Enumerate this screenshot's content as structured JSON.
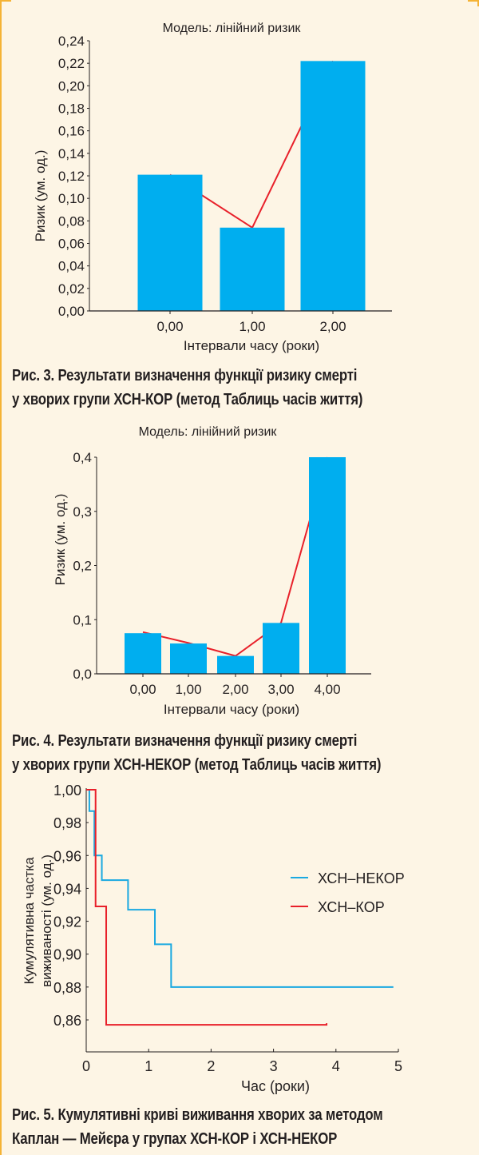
{
  "colors": {
    "background": "#fdf5e5",
    "bar": "#00aeef",
    "hazard_line": "#e8202a",
    "nekor": "#1aa9e1",
    "kor": "#e8202a",
    "frame": "#f5b335"
  },
  "captions": [
    {
      "line1": "Рис. 3. Результати визначення функції ризику смерті",
      "line2": "у хворих групи ХСН-КОР (метод Таблиць часів життя)"
    },
    {
      "line1": "Рис. 4. Результати визначення функції ризику смерті",
      "line2": "у хворих групи ХСН-НЕКОР (метод Таблиць часів життя)"
    },
    {
      "line1": "Рис. 5. Кумулятивні криві виживання хворих за методом",
      "line2": "Каплан — Мейєра у групах ХСН-КОР і ХСН-НЕКОР"
    }
  ],
  "chart_data": [
    {
      "type": "bar",
      "title": "Модель: лінійний ризик",
      "xlabel": "Інтервали часу (роки)",
      "ylabel": "Ризик (ум. од.)",
      "categories": [
        "0,00",
        "1,00",
        "2,00"
      ],
      "values": [
        0.121,
        0.074,
        0.222
      ],
      "line_values": [
        0.121,
        0.074,
        0.222
      ],
      "ylim": [
        0,
        0.24
      ],
      "yticks": [
        0,
        0.02,
        0.04,
        0.06,
        0.08,
        0.1,
        0.12,
        0.14,
        0.16,
        0.18,
        0.2,
        0.22,
        0.24
      ],
      "ytick_labels": [
        "0,00",
        "0,02",
        "0,04",
        "0,06",
        "0,08",
        "0,10",
        "0,12",
        "0,14",
        "0,16",
        "0,18",
        "0,20",
        "0,22",
        "0,24"
      ],
      "grid": false
    },
    {
      "type": "bar",
      "title": "Модель: лінійний ризик",
      "xlabel": "Інтервали часу (роки)",
      "ylabel": "Ризик (ум. од.)",
      "categories": [
        "0,00",
        "1,00",
        "2,00",
        "3,00",
        "4,00"
      ],
      "values": [
        0.075,
        0.056,
        0.033,
        0.094,
        0.4
      ],
      "line_values": [
        0.077,
        0.057,
        0.033,
        0.094,
        0.4
      ],
      "ylim": [
        0,
        0.4
      ],
      "yticks": [
        0,
        0.1,
        0.2,
        0.3,
        0.4
      ],
      "ytick_labels": [
        "0,0",
        "0,1",
        "0,2",
        "0,3",
        "0,4"
      ],
      "grid": false
    },
    {
      "type": "line",
      "xlabel": "Час (роки)",
      "ylabel_lines": [
        "Кумулятивна частка",
        "виживаності (ум. од.)"
      ],
      "xlim": [
        0,
        5
      ],
      "ylim": [
        0.845,
        1.0
      ],
      "xticks": [
        0,
        1,
        2,
        3,
        4,
        5
      ],
      "xtick_labels": [
        "0",
        "1",
        "2",
        "3",
        "4",
        "5"
      ],
      "yticks": [
        0.86,
        0.88,
        0.9,
        0.92,
        0.94,
        0.96,
        0.98,
        1.0
      ],
      "ytick_labels": [
        "0,86",
        "0,88",
        "0,90",
        "0,92",
        "0,94",
        "0,96",
        "0,98",
        "1,00"
      ],
      "legend_position": "right",
      "series": [
        {
          "name": "ХСН–НЕКОР",
          "step": true,
          "x": [
            0,
            0.05,
            0.13,
            0.25,
            0.67,
            1.1,
            1.36,
            4.92
          ],
          "y": [
            1.0,
            0.987,
            0.96,
            0.945,
            0.927,
            0.906,
            0.88,
            0.88
          ]
        },
        {
          "name": "ХСН–КОР",
          "step": true,
          "x": [
            0,
            0.15,
            0.32,
            3.85
          ],
          "y": [
            1.0,
            0.929,
            0.857,
            0.858
          ]
        }
      ],
      "grid": false
    }
  ]
}
